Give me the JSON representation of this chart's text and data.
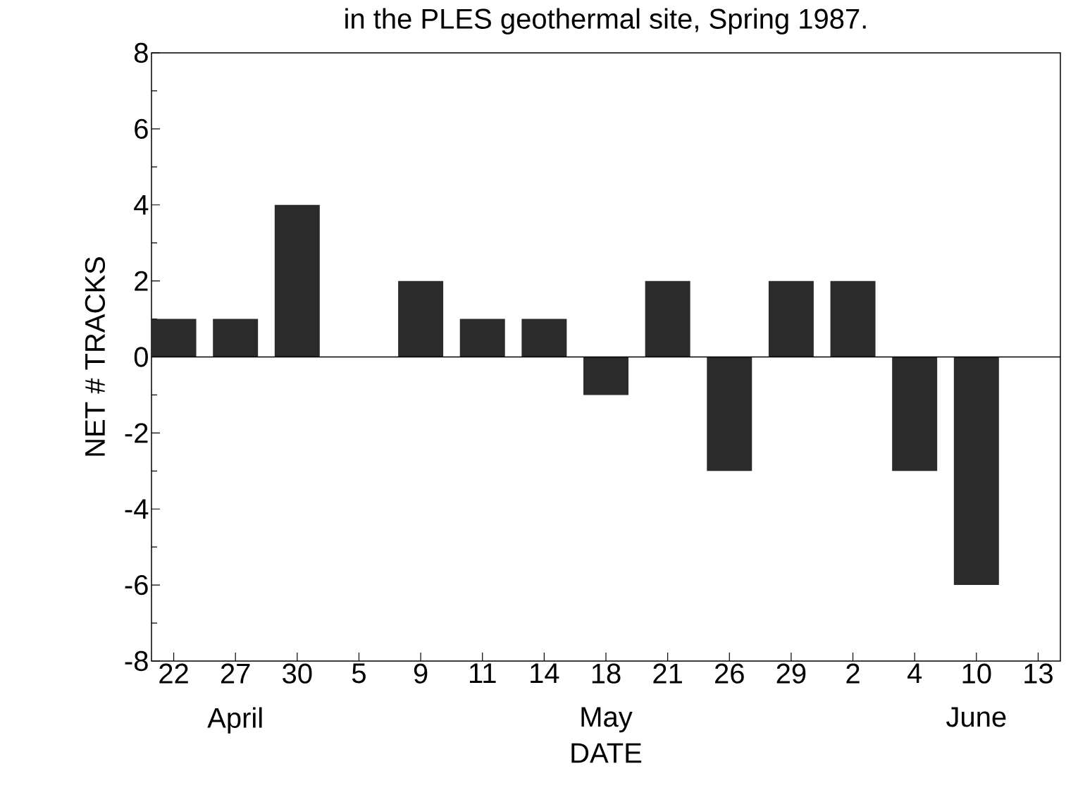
{
  "chart_data": {
    "type": "bar",
    "title": "in the PLES geothermal site, Spring 1987.",
    "xlabel": "DATE",
    "ylabel": "NET # TRACKS",
    "categories": [
      "22",
      "27",
      "30",
      "5",
      "9",
      "11",
      "14",
      "18",
      "21",
      "26",
      "29",
      "2",
      "4",
      "10",
      "13"
    ],
    "values": [
      1,
      1,
      4,
      0,
      2,
      1,
      1,
      -1,
      2,
      -3,
      2,
      2,
      -3,
      -6,
      0
    ],
    "color": "#2b2b2b",
    "ylim": [
      -8,
      8
    ],
    "yticks": [
      -8,
      -6,
      -4,
      -2,
      0,
      2,
      4,
      6,
      8
    ],
    "annotations": [
      "April",
      "May",
      "June"
    ],
    "ref_lines": [
      {
        "axis": "y",
        "value": 0,
        "color": "#000000"
      }
    ]
  }
}
